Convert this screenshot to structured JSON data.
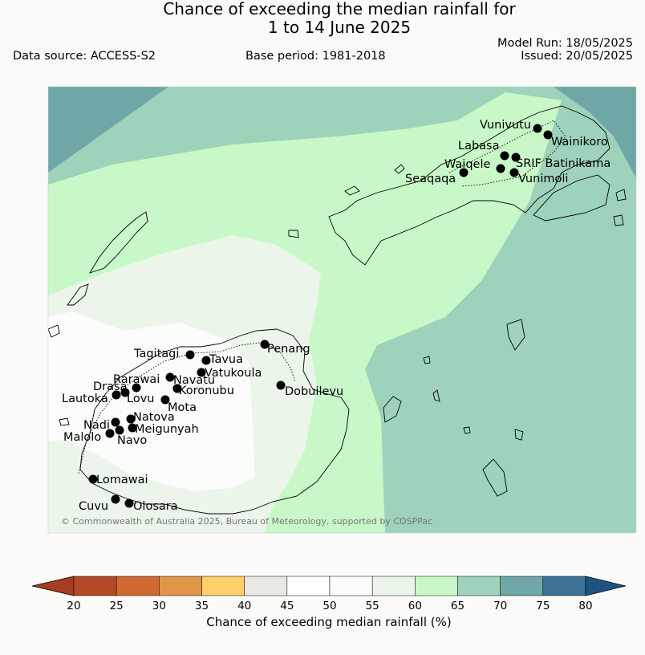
{
  "title": {
    "line1": "Chance of exceeding the median rainfall for",
    "line2": "1 to 14 June 2025"
  },
  "meta": {
    "data_source": "Data source: ACCESS-S2",
    "base_period": "Base period: 1981-2018",
    "model_run": "Model Run: 18/05/2025",
    "issued": "Issued: 20/05/2025"
  },
  "copyright": "© Commonwealth of Australia 2025, Bureau of Meteorology, supported by COSPPac",
  "map_legend": {
    "label": "Chance of exceeding median rainfall (%)",
    "ticks": [
      "20",
      "25",
      "30",
      "35",
      "40",
      "45",
      "50",
      "55",
      "60",
      "65",
      "70",
      "75",
      "80"
    ],
    "colors": [
      "#a63d22",
      "#b24a27",
      "#cf6a33",
      "#e0964a",
      "#fdd069",
      "#e9e8e4",
      "#fcfefc",
      "#fbfdfb",
      "#ebf5ea",
      "#c9f8c8",
      "#9ed2bb",
      "#6fa7a6",
      "#3d7394",
      "#1e5482"
    ]
  },
  "stations": [
    {
      "name": "Vunivutu"
    },
    {
      "name": "Wainikoro"
    },
    {
      "name": "Labasa"
    },
    {
      "name": "Waiqele"
    },
    {
      "name": "SRIF Batinikama"
    },
    {
      "name": "Vunimoli"
    },
    {
      "name": "Seaqaqa"
    },
    {
      "name": "Penang"
    },
    {
      "name": "Tagitagi"
    },
    {
      "name": "Tavua"
    },
    {
      "name": "Vatukoula"
    },
    {
      "name": "Rarawai"
    },
    {
      "name": "Navatu"
    },
    {
      "name": "Koronubu"
    },
    {
      "name": "Drasa"
    },
    {
      "name": "Lautoka"
    },
    {
      "name": "Lovu"
    },
    {
      "name": "Mota"
    },
    {
      "name": "Dobuilevu"
    },
    {
      "name": "Natova"
    },
    {
      "name": "Nadi"
    },
    {
      "name": "Meigunyah"
    },
    {
      "name": "Malolo"
    },
    {
      "name": "Navo"
    },
    {
      "name": "Lomawai"
    },
    {
      "name": "Cuvu"
    },
    {
      "name": "Olosara"
    }
  ]
}
